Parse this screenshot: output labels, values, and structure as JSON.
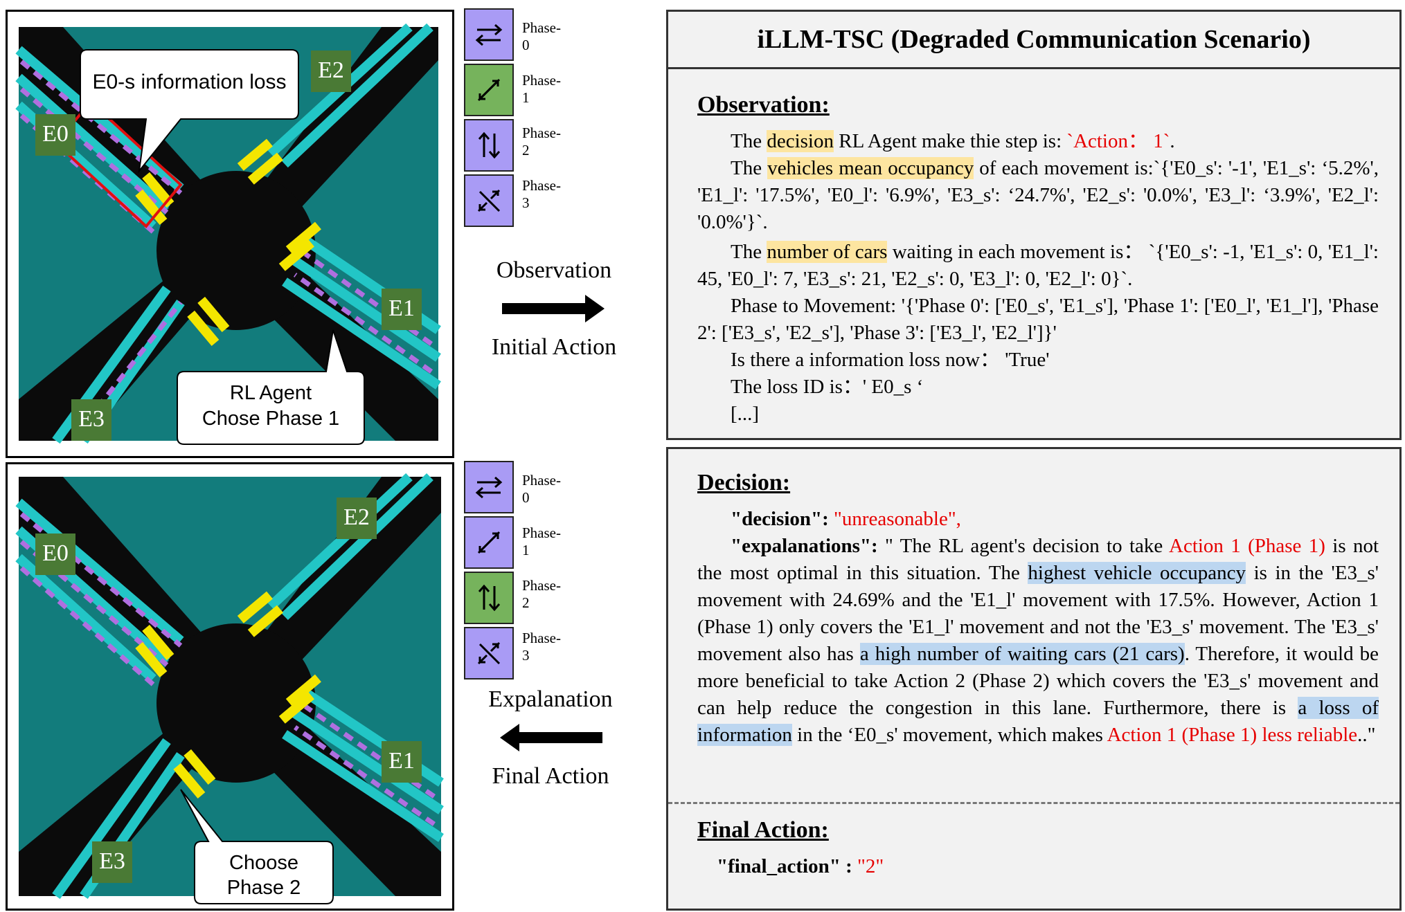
{
  "top_sim": {
    "labels": [
      "E0",
      "E1",
      "E2",
      "E3"
    ],
    "callout_loss": "E0-s information loss",
    "callout_agent_line1": "RL Agent",
    "callout_agent_line2": "Chose  Phase 1"
  },
  "bottom_sim": {
    "labels": [
      "E0",
      "E1",
      "E2",
      "E3"
    ],
    "callout_choose_line1": "Choose",
    "callout_choose_line2": "Phase 2"
  },
  "phases_top": {
    "items": [
      "Phase-0",
      "Phase-1",
      "Phase-2",
      "Phase-3"
    ],
    "active_index": 1
  },
  "phases_bottom": {
    "items": [
      "Phase-0",
      "Phase-1",
      "Phase-2",
      "Phase-3"
    ],
    "active_index": 2
  },
  "arrows": {
    "forward_top": "Observation",
    "forward_bottom": "Initial Action",
    "back_top": "Expalanation",
    "back_bottom": "Final Action"
  },
  "colors": {
    "grass": "#127c7c",
    "road": "#0b0b0b",
    "lane": "#22c6c6",
    "label_green": "#4a7a35",
    "phase_purple": "#a99bf5",
    "phase_green": "#76b35c",
    "highlight_yellow": "#fde5a0",
    "highlight_blue": "#bcd6f0",
    "red_text": "#e60000"
  },
  "panel": {
    "title": "iLLM-TSC (Degraded Communication Scenario)",
    "observation": {
      "heading": "Observation:",
      "l1a": "The ",
      "l1b": "decision",
      "l1c": " RL Agent make thie step is: ",
      "l1d": "`Action： 1`",
      "l1e": ".",
      "l2a": "The ",
      "l2b": "vehicles mean occupancy",
      "l2c": " of each movement is:`{'E0_s': '-1', 'E1_s': ‘5.2%', 'E1_l': '17.5%', 'E0_l': '6.9%', 'E3_s': ‘24.7%', 'E2_s': '0.0%', 'E3_l': ‘3.9%', 'E2_l': '0.0%'}`.",
      "l3a": "The ",
      "l3b": "number of cars",
      "l3c": " waiting in each movement is： `{'E0_s': -1, 'E1_s': 0, 'E1_l': 45, 'E0_l': 7, 'E3_s': 21, 'E2_s': 0, 'E3_l': 0, 'E2_l': 0}`.",
      "l4": "Phase to Movement: '{'Phase 0': ['E0_s', 'E1_s'], 'Phase 1': ['E0_l', 'E1_l'], 'Phase 2': ['E3_s', 'E2_s'], 'Phase 3': ['E3_l', 'E2_l']}'",
      "l5": "Is there a information loss now： 'True'",
      "l6": "The loss ID is：' E0_s ‘",
      "l7": "[...]"
    },
    "decision": {
      "heading": "Decision:",
      "key_decision": "\"decision\":",
      "val_decision": "\"unreasonable\",",
      "key_expl": "\"expalanations\":",
      "e1": " \" The RL agent's decision to take ",
      "e2": "Action 1 (Phase 1)",
      "e3": " is not the most optimal in this situation. The ",
      "e4": "highest vehicle occupancy",
      "e5": " is in the 'E3_s' movement with 24.69% and the 'E1_l' movement with 17.5%. However, Action 1 (Phase 1) only covers the 'E1_l' movement and not the 'E3_s' movement. The 'E3_s' movement also has ",
      "e6": "a high number of waiting cars (21 cars)",
      "e7": ". Therefore, it would be more beneficial to take Action 2 (Phase 2) which covers the 'E3_s' movement and can help reduce the congestion in this lane. Furthermore, there is ",
      "e8": "a loss of information",
      "e9": " in the ‘E0_s' movement, which makes ",
      "e10": "Action 1 (Phase 1) less reliable",
      "e11": "..\""
    },
    "final": {
      "heading": "Final Action:",
      "key": "\"final_action\" :",
      "val": " \"2\""
    }
  }
}
